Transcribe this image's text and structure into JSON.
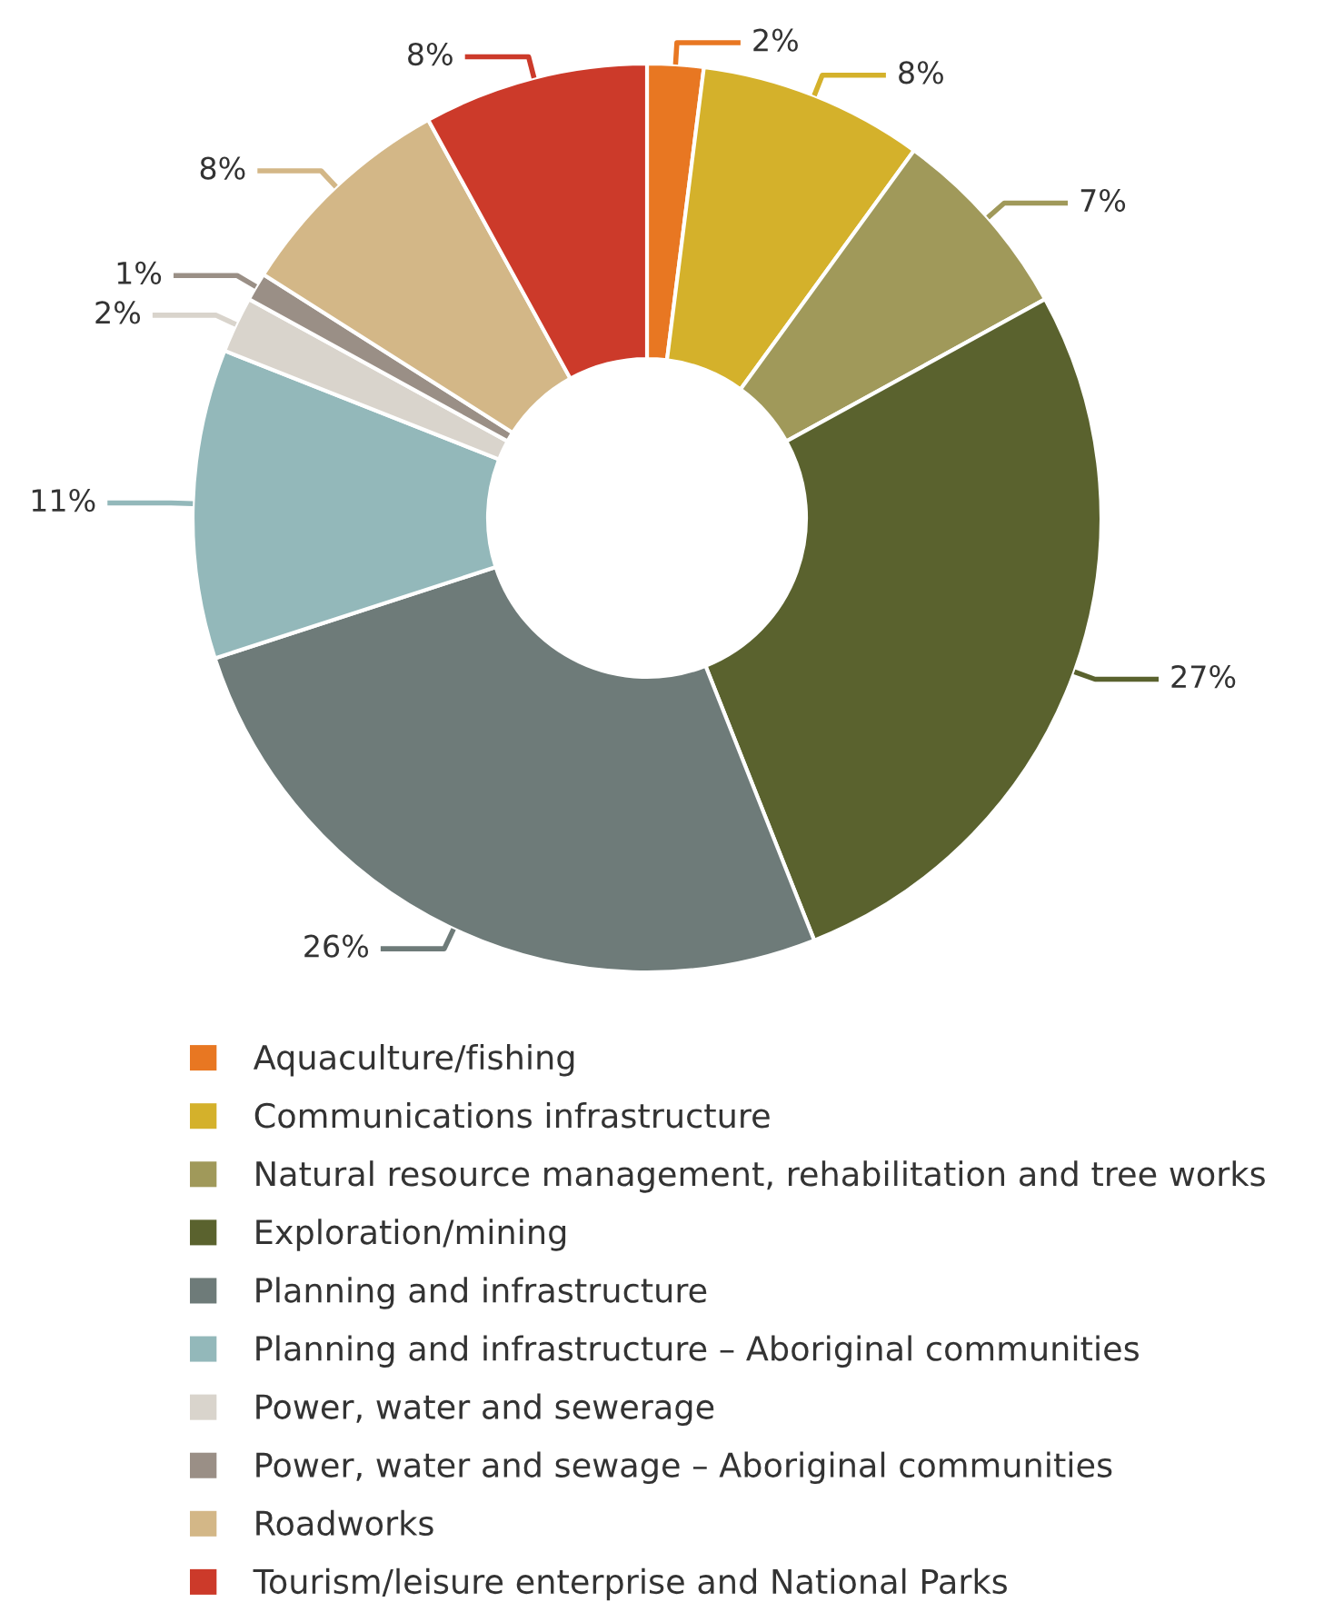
{
  "chart_data": {
    "type": "donut",
    "categories": [
      "Aquaculture/fishing",
      "Communications infrastructure",
      "Natural resource management, rehabilitation and tree works",
      "Exploration/mining",
      "Planning and infrastructure",
      "Planning and infrastructure – Aboriginal communities",
      "Power, water and sewerage",
      "Power, water and sewage – Aboriginal communities",
      "Roadworks",
      "Tourism/leisure enterprise and National Parks"
    ],
    "values": [
      2,
      8,
      7,
      27,
      26,
      11,
      2,
      1,
      8,
      8
    ],
    "colors": [
      "#e87722",
      "#d4b12b",
      "#a0995a",
      "#5a622e",
      "#6e7b79",
      "#93b8ba",
      "#d9d4cc",
      "#9a8f86",
      "#d3b787",
      "#cc3a2a"
    ],
    "value_labels": [
      "2%",
      "8%",
      "7%",
      "27%",
      "26%",
      "11%",
      "2%",
      "1%",
      "8%",
      "8%"
    ],
    "legend": "bottom"
  }
}
